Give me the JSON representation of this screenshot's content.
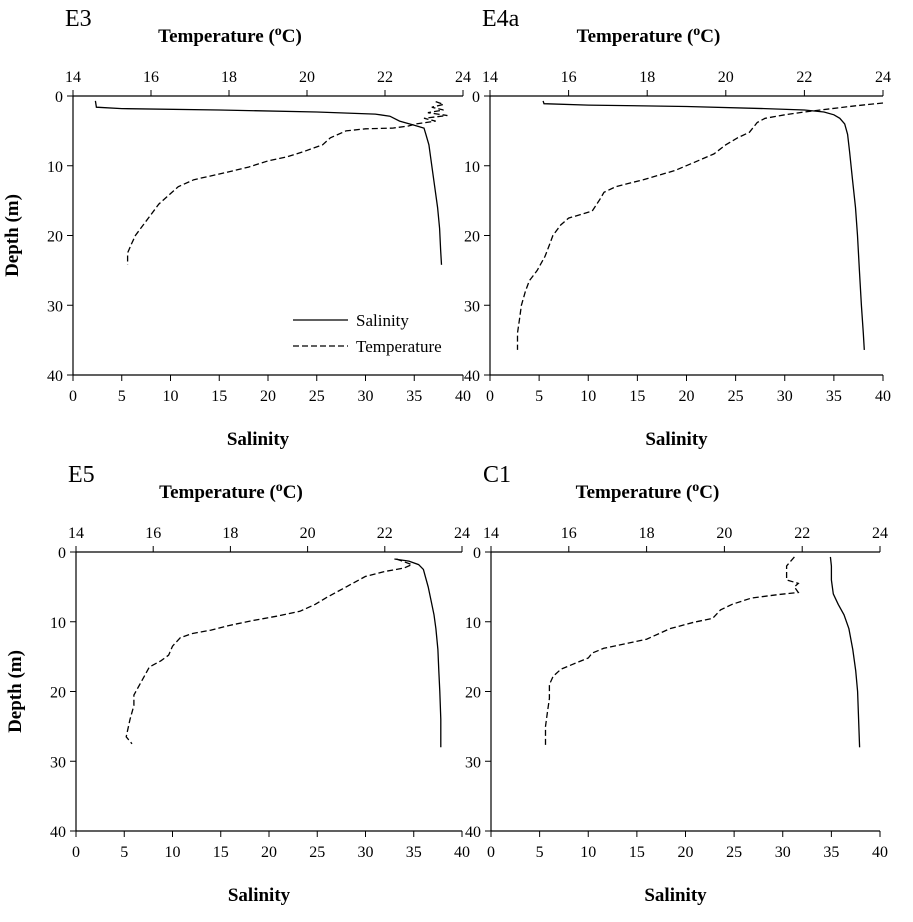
{
  "chart_data": [
    {
      "type": "line",
      "title": "E3",
      "xlabel": "Salinity",
      "x2label": "Temperature (°C)",
      "x2label_parts": [
        "Temperature (",
        "o",
        "C)"
      ],
      "ylabel": "Depth (m)",
      "xlim": [
        0,
        40
      ],
      "x2lim": [
        14,
        24
      ],
      "ylim": [
        40,
        0
      ],
      "x_ticks": [
        0,
        5,
        10,
        15,
        20,
        25,
        30,
        35,
        40
      ],
      "x2_ticks": [
        14,
        16,
        18,
        20,
        22,
        24
      ],
      "y_ticks": [
        0,
        10,
        20,
        30,
        40
      ],
      "legend": {
        "position": "lower-right",
        "entries": [
          "Salinity",
          "Temperature"
        ]
      },
      "series": [
        {
          "name": "Salinity",
          "axis": "bottom",
          "dash": "solid",
          "points": [
            [
              2.3,
              0.7
            ],
            [
              2.4,
              1.6
            ],
            [
              5,
              1.8
            ],
            [
              15,
              2.0
            ],
            [
              25,
              2.3
            ],
            [
              31,
              2.6
            ],
            [
              32.5,
              2.9
            ],
            [
              33.5,
              3.6
            ],
            [
              35,
              4.2
            ],
            [
              36,
              4.6
            ],
            [
              36.2,
              5.5
            ],
            [
              36.5,
              7
            ],
            [
              36.8,
              10
            ],
            [
              37.1,
              13
            ],
            [
              37.4,
              16
            ],
            [
              37.6,
              19
            ],
            [
              37.7,
              22
            ],
            [
              37.8,
              24.2
            ]
          ]
        },
        {
          "name": "Temperature",
          "axis": "top",
          "dash": "dashed",
          "points": [
            [
              23.3,
              0.8
            ],
            [
              23.5,
              1.2
            ],
            [
              23.2,
              1.6
            ],
            [
              23.5,
              2.0
            ],
            [
              23.1,
              2.4
            ],
            [
              23.6,
              2.8
            ],
            [
              23.0,
              3.2
            ],
            [
              23.3,
              3.6
            ],
            [
              22.8,
              4.0
            ],
            [
              22.6,
              4.3
            ],
            [
              22.2,
              4.6
            ],
            [
              21.5,
              4.7
            ],
            [
              21.0,
              5.0
            ],
            [
              20.6,
              6
            ],
            [
              20.4,
              7
            ],
            [
              19.9,
              8
            ],
            [
              19.5,
              8.7
            ],
            [
              19.0,
              9.3
            ],
            [
              18.5,
              10.2
            ],
            [
              17.9,
              11
            ],
            [
              17.1,
              12
            ],
            [
              16.7,
              13
            ],
            [
              16.5,
              14
            ],
            [
              16.2,
              15.5
            ],
            [
              16.0,
              17
            ],
            [
              15.8,
              18.5
            ],
            [
              15.6,
              20
            ],
            [
              15.5,
              21.2
            ],
            [
              15.4,
              22.5
            ],
            [
              15.4,
              24.2
            ]
          ]
        }
      ]
    },
    {
      "type": "line",
      "title": "E4a",
      "xlabel": "Salinity",
      "x2label": "Temperature (°C)",
      "x2label_parts": [
        "Temperature (",
        "o",
        "C)"
      ],
      "ylabel": "",
      "xlim": [
        0,
        40
      ],
      "x2lim": [
        14,
        24
      ],
      "ylim": [
        40,
        0
      ],
      "x_ticks": [
        0,
        5,
        10,
        15,
        20,
        25,
        30,
        35,
        40
      ],
      "x2_ticks": [
        14,
        16,
        18,
        20,
        22,
        24
      ],
      "y_ticks": [
        0,
        10,
        20,
        30,
        40
      ],
      "series": [
        {
          "name": "Salinity",
          "axis": "bottom",
          "dash": "solid",
          "points": [
            [
              5.4,
              0.7
            ],
            [
              5.5,
              1.1
            ],
            [
              10,
              1.3
            ],
            [
              20,
              1.5
            ],
            [
              28,
              1.8
            ],
            [
              32,
              2.0
            ],
            [
              34,
              2.3
            ],
            [
              35,
              2.7
            ],
            [
              35.6,
              3.2
            ],
            [
              36.1,
              4
            ],
            [
              36.4,
              5.5
            ],
            [
              36.6,
              8
            ],
            [
              36.9,
              12
            ],
            [
              37.2,
              16
            ],
            [
              37.4,
              20
            ],
            [
              37.6,
              25
            ],
            [
              37.8,
              30
            ],
            [
              38.0,
              34
            ],
            [
              38.1,
              36.4
            ]
          ]
        },
        {
          "name": "Temperature",
          "axis": "top",
          "dash": "dashed",
          "points": [
            [
              24.0,
              1.0
            ],
            [
              23.3,
              1.4
            ],
            [
              22.7,
              1.8
            ],
            [
              22.0,
              2.3
            ],
            [
              21.5,
              2.7
            ],
            [
              21.0,
              3.2
            ],
            [
              20.8,
              3.8
            ],
            [
              20.7,
              4.5
            ],
            [
              20.6,
              5.2
            ],
            [
              20.3,
              6
            ],
            [
              20.0,
              7
            ],
            [
              19.7,
              8.3
            ],
            [
              19.2,
              9.5
            ],
            [
              18.7,
              10.7
            ],
            [
              17.9,
              12
            ],
            [
              17.2,
              13
            ],
            [
              16.9,
              13.8
            ],
            [
              16.8,
              14.8
            ],
            [
              16.6,
              16.5
            ],
            [
              16.0,
              17.5
            ],
            [
              15.8,
              18.5
            ],
            [
              15.6,
              20
            ],
            [
              15.5,
              21.5
            ],
            [
              15.4,
              23
            ],
            [
              15.2,
              25
            ],
            [
              15.0,
              26.5
            ],
            [
              14.9,
              28
            ],
            [
              14.8,
              30
            ],
            [
              14.75,
              32
            ],
            [
              14.7,
              34
            ],
            [
              14.7,
              36.4
            ]
          ]
        }
      ]
    },
    {
      "type": "line",
      "title": "E5",
      "xlabel": "Salinity",
      "x2label": "Temperature (°C)",
      "x2label_parts": [
        "Temperature (",
        "o",
        "C)"
      ],
      "ylabel": "Depth (m)",
      "xlim": [
        0,
        40
      ],
      "x2lim": [
        14,
        24
      ],
      "ylim": [
        40,
        0
      ],
      "x_ticks": [
        0,
        5,
        10,
        15,
        20,
        25,
        30,
        35,
        40
      ],
      "x2_ticks": [
        14,
        16,
        18,
        20,
        22,
        24
      ],
      "y_ticks": [
        0,
        10,
        20,
        30,
        40
      ],
      "series": [
        {
          "name": "Salinity",
          "axis": "bottom",
          "dash": "solid",
          "points": [
            [
              33.0,
              1.0
            ],
            [
              34.5,
              1.3
            ],
            [
              35.5,
              1.8
            ],
            [
              36.0,
              2.5
            ],
            [
              36.2,
              3.5
            ],
            [
              36.5,
              5
            ],
            [
              36.8,
              7
            ],
            [
              37.1,
              9
            ],
            [
              37.3,
              11
            ],
            [
              37.5,
              14
            ],
            [
              37.6,
              17
            ],
            [
              37.7,
              20
            ],
            [
              37.8,
              24
            ],
            [
              37.8,
              28
            ]
          ]
        },
        {
          "name": "Temperature",
          "axis": "top",
          "dash": "dashed",
          "points": [
            [
              22.3,
              1.0
            ],
            [
              22.7,
              1.8
            ],
            [
              22.5,
              2.3
            ],
            [
              22.0,
              2.8
            ],
            [
              21.5,
              3.5
            ],
            [
              21.0,
              5
            ],
            [
              20.5,
              6.5
            ],
            [
              20.2,
              7.5
            ],
            [
              19.8,
              8.5
            ],
            [
              19.2,
              9.2
            ],
            [
              18.6,
              9.8
            ],
            [
              18.0,
              10.5
            ],
            [
              17.5,
              11.2
            ],
            [
              17.0,
              11.7
            ],
            [
              16.7,
              12.3
            ],
            [
              16.5,
              13.5
            ],
            [
              16.4,
              14.8
            ],
            [
              16.2,
              15.6
            ],
            [
              15.9,
              16.5
            ],
            [
              15.8,
              17.5
            ],
            [
              15.6,
              19.5
            ],
            [
              15.5,
              20.5
            ],
            [
              15.5,
              22
            ],
            [
              15.4,
              24
            ],
            [
              15.3,
              26.5
            ],
            [
              15.45,
              27.5
            ]
          ]
        }
      ]
    },
    {
      "type": "line",
      "title": "C1",
      "xlabel": "Salinity",
      "x2label": "Temperature (°C)",
      "x2label_parts": [
        "Temperature (",
        "o",
        "C)"
      ],
      "ylabel": "",
      "xlim": [
        0,
        40
      ],
      "x2lim": [
        14,
        24
      ],
      "ylim": [
        40,
        0
      ],
      "x_ticks": [
        0,
        5,
        10,
        15,
        20,
        25,
        30,
        35,
        40
      ],
      "x2_ticks": [
        14,
        16,
        18,
        20,
        22,
        24
      ],
      "y_ticks": [
        0,
        10,
        20,
        30,
        40
      ],
      "series": [
        {
          "name": "Salinity",
          "axis": "bottom",
          "dash": "solid",
          "points": [
            [
              34.9,
              0.7
            ],
            [
              35.0,
              2
            ],
            [
              35.0,
              4
            ],
            [
              35.2,
              6
            ],
            [
              35.7,
              7.5
            ],
            [
              36.3,
              9
            ],
            [
              36.8,
              11
            ],
            [
              37.2,
              14
            ],
            [
              37.5,
              17
            ],
            [
              37.7,
              20
            ],
            [
              37.8,
              24
            ],
            [
              37.9,
              28
            ]
          ]
        },
        {
          "name": "Temperature",
          "axis": "top",
          "dash": "dashed",
          "points": [
            [
              21.8,
              0.7
            ],
            [
              21.6,
              2
            ],
            [
              21.6,
              4
            ],
            [
              21.9,
              4.5
            ],
            [
              21.8,
              5
            ],
            [
              21.9,
              5.8
            ],
            [
              21.4,
              6.1
            ],
            [
              20.7,
              6.6
            ],
            [
              20.2,
              7.5
            ],
            [
              19.9,
              8.3
            ],
            [
              19.7,
              9.5
            ],
            [
              19.2,
              10.1
            ],
            [
              18.6,
              11
            ],
            [
              18.0,
              12.5
            ],
            [
              17.5,
              13.1
            ],
            [
              16.9,
              13.8
            ],
            [
              16.6,
              14.5
            ],
            [
              16.5,
              15.2
            ],
            [
              16.1,
              16.1
            ],
            [
              15.8,
              16.8
            ],
            [
              15.6,
              17.8
            ],
            [
              15.5,
              19
            ],
            [
              15.5,
              21
            ],
            [
              15.45,
              23
            ],
            [
              15.4,
              25
            ],
            [
              15.4,
              28
            ]
          ]
        }
      ]
    }
  ]
}
